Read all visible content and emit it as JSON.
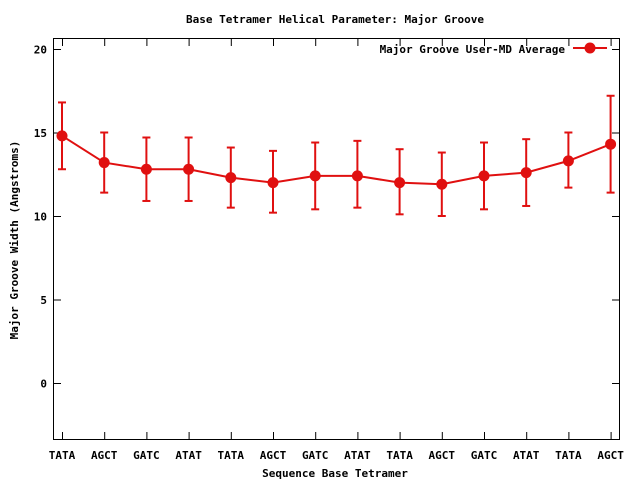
{
  "chart_data": {
    "type": "line",
    "title": "Base Tetramer Helical Parameter: Major Groove",
    "xlabel": "Sequence Base Tetramer",
    "ylabel": "Major Groove Width (Angstroms)",
    "categories": [
      "TATA",
      "AGCT",
      "GATC",
      "ATAT",
      "TATA",
      "AGCT",
      "GATC",
      "ATAT",
      "TATA",
      "AGCT",
      "GATC",
      "ATAT",
      "TATA",
      "AGCT"
    ],
    "y_ticks": [
      "20",
      "15",
      "10",
      "5",
      "0"
    ],
    "ylim": [
      -3.3,
      20.5
    ],
    "grid": false,
    "legend_position": "top-right",
    "series": [
      {
        "name": "Major Groove User-MD Average",
        "color": "#e01010",
        "values": [
          14.8,
          13.2,
          12.8,
          12.8,
          12.3,
          12.0,
          12.4,
          12.4,
          12.0,
          11.9,
          12.4,
          12.6,
          13.3,
          14.3
        ],
        "error_low": [
          12.8,
          11.4,
          10.9,
          10.9,
          10.5,
          10.2,
          10.4,
          10.5,
          10.1,
          10.0,
          10.4,
          10.6,
          11.7,
          11.4
        ],
        "error_high": [
          16.8,
          15.0,
          14.7,
          14.7,
          14.1,
          13.9,
          14.4,
          14.5,
          14.0,
          13.8,
          14.4,
          14.6,
          15.0,
          17.2
        ]
      }
    ]
  }
}
